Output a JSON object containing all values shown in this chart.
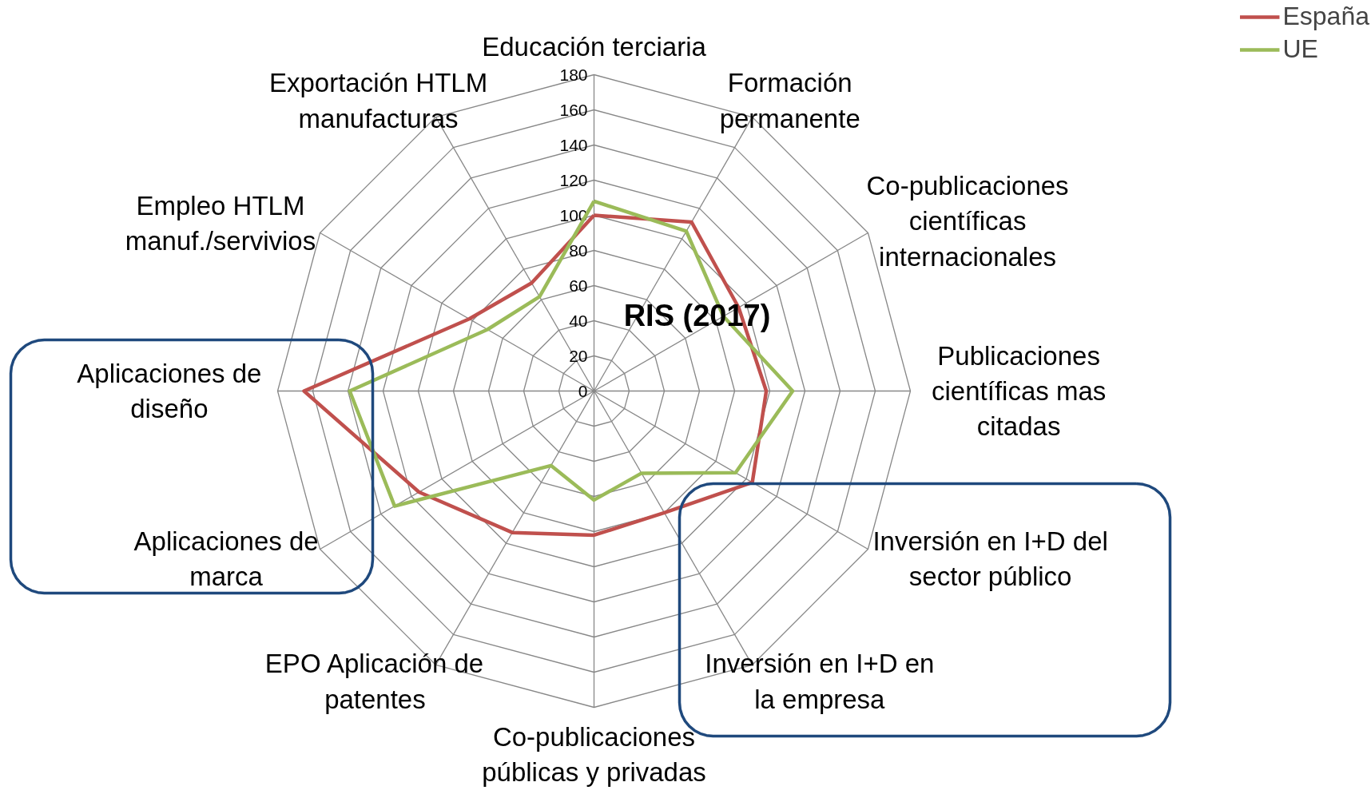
{
  "chart_data": {
    "type": "radar",
    "title": "RIS (2017)",
    "categories": [
      "Educación terciaria",
      "Formación\npermanente",
      "Co-publicaciones\ncientíficas\ninternacionales",
      "Publicaciones\ncientíficas mas\ncitadas",
      "Inversión en I+D del\nsector público",
      "Inversión en I+D en\nla empresa",
      "Co-publicaciones\npúblicas y privadas",
      "EPO Aplicación de\npatentes",
      "Aplicaciones de\nmarca",
      "Aplicaciones de\ndiseño",
      "Empleo HTLM\nmanuf./servivios",
      "Exportación HTLM\nmanufacturas"
    ],
    "series": [
      {
        "name": "España",
        "color": "#c0504d",
        "values": [
          100,
          111,
          95,
          98,
          104,
          80,
          82,
          93,
          115,
          165,
          82,
          71
        ]
      },
      {
        "name": "UE",
        "color": "#9bbb59",
        "values": [
          108,
          105,
          85,
          113,
          93,
          54,
          62,
          49,
          131,
          139,
          70,
          62
        ]
      }
    ],
    "ylim": [
      0,
      180
    ],
    "yticks": [
      0,
      20,
      40,
      60,
      80,
      100,
      120,
      140,
      160,
      180
    ],
    "legend": "top right"
  }
}
